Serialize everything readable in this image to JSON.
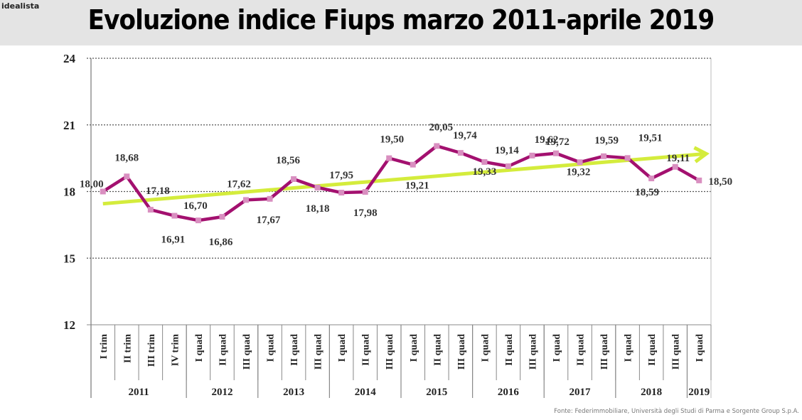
{
  "brand": "idealista",
  "title": "Evoluzione indice Fiups marzo 2011-aprile 2019",
  "footer": "Fonte: Federimmobiliare, Università degli Studi di Parma e Sorgente Group S.p.A.",
  "colors": {
    "line": "#a3106f",
    "marker": "#d98fc0",
    "trend": "#d4ec3c",
    "header_bg": "#e4e4e4"
  },
  "chart_data": {
    "type": "line",
    "title": "Evoluzione indice Fiups marzo 2011-aprile 2019",
    "xlabel": "",
    "ylabel": "",
    "ylim": [
      12,
      24
    ],
    "yticks": [
      12,
      15,
      18,
      21,
      24
    ],
    "grid": true,
    "categories": [
      "I trim",
      "II trim",
      "III trim",
      "IV trim",
      "I quad",
      "II quad",
      "III quad",
      "I quad",
      "II quad",
      "III quad",
      "I quad",
      "II quad",
      "III quad",
      "I quad",
      "II quad",
      "III quad",
      "I quad",
      "II quad",
      "III quad",
      "I quad",
      "II quad",
      "III quad",
      "I quad",
      "II quad",
      "III quad",
      "I quad"
    ],
    "years": [
      {
        "label": "2011",
        "span": 4
      },
      {
        "label": "2012",
        "span": 3
      },
      {
        "label": "2013",
        "span": 3
      },
      {
        "label": "2014",
        "span": 3
      },
      {
        "label": "2015",
        "span": 3
      },
      {
        "label": "2016",
        "span": 3
      },
      {
        "label": "2017",
        "span": 3
      },
      {
        "label": "2018",
        "span": 3
      },
      {
        "label": "2019",
        "span": 1
      }
    ],
    "series": [
      {
        "name": "Indice Fiups",
        "values": [
          18.0,
          18.68,
          17.18,
          16.91,
          16.7,
          16.86,
          17.62,
          17.67,
          18.56,
          18.18,
          17.95,
          17.98,
          19.5,
          19.21,
          20.05,
          19.74,
          19.33,
          19.14,
          19.62,
          19.72,
          19.32,
          19.59,
          19.51,
          18.59,
          19.11,
          18.5
        ]
      }
    ],
    "labels": [
      "18,00",
      "18,68",
      "17,18",
      "16,91",
      "16,70",
      "16,86",
      "17,62",
      "17,67",
      "18,56",
      "18,18",
      "17,95",
      "17,98",
      "19,50",
      "19,21",
      "20,05",
      "19,74",
      "19,33",
      "19,14",
      "19,62",
      "19,72",
      "19,32",
      "19,59",
      "19,51",
      "18,59",
      "19,11",
      "18,50"
    ],
    "trend": {
      "start": 17.45,
      "end": 19.7,
      "arrow": true
    }
  }
}
